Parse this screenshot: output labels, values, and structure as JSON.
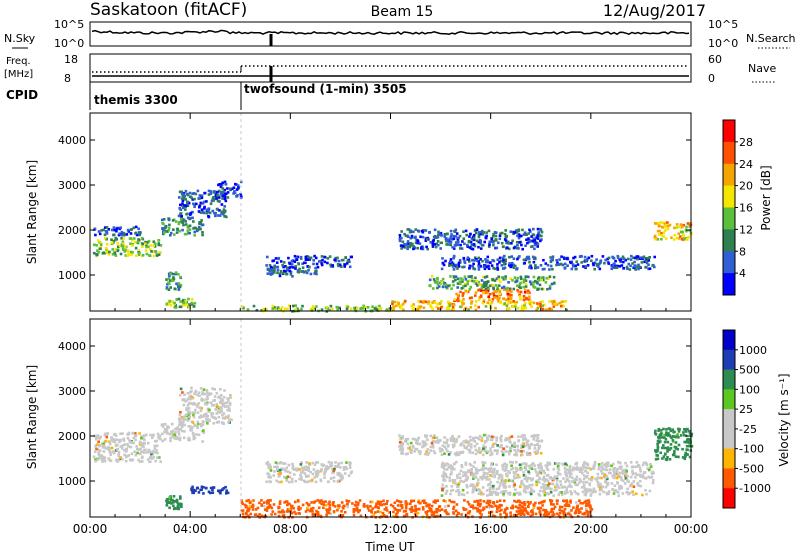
{
  "header": {
    "station": "Saskatoon (fitACF)",
    "beam": "Beam 15",
    "date": "12/Aug/2017"
  },
  "strip": {
    "nsky_label": "N.Sky",
    "nsearch_label": "N.Search",
    "noise_left_ticks": [
      "10^5",
      "10^0"
    ],
    "noise_right_ticks": [
      "10^5",
      "10^0"
    ],
    "freq_label": "Freq.",
    "freq_unit": "[MHz]",
    "freq_ticks": [
      "18",
      "8"
    ],
    "nave_label": "Nave",
    "nave_ticks": [
      "60",
      "0"
    ],
    "cpid_label": "CPID",
    "modes": [
      "themis 3300",
      "twofsound (1-min) 3505"
    ]
  },
  "colors": {
    "power": [
      "#0000ff",
      "#2f5fd2",
      "#2f7f4f",
      "#5bbf3b",
      "#f5e600",
      "#f5a500",
      "#ff5000",
      "#ff0000"
    ],
    "velocity": [
      "#ff0000",
      "#ff5a00",
      "#ffb400",
      "#c8c8c8",
      "#c8c8c8",
      "#5ac81e",
      "#2d8c50",
      "#1e3cb4",
      "#0000c8"
    ]
  },
  "chart_data": [
    {
      "type": "heatmap",
      "name": "Power",
      "ylabel": "Slant Range [km]",
      "yticks": [
        1000,
        2000,
        3000,
        4000
      ],
      "ylim": [
        200,
        4600
      ],
      "xlim": [
        0,
        24
      ],
      "xticks": [
        "00:00",
        "04:00",
        "08:00",
        "12:00",
        "16:00",
        "20:00",
        "00:00"
      ],
      "colorbar_label": "Power [dB]",
      "colorbar_ticks": [
        "28",
        "24",
        "20",
        "16",
        "12",
        "8",
        "4"
      ],
      "bands": [
        {
          "t": [
            0.1,
            2.8
          ],
          "r": [
            1450,
            1850
          ],
          "v": 14
        },
        {
          "t": [
            0.1,
            2.0
          ],
          "r": [
            1900,
            2100
          ],
          "v": 6
        },
        {
          "t": [
            2.8,
            4.5
          ],
          "r": [
            1900,
            2300
          ],
          "v": 10
        },
        {
          "t": [
            3.5,
            5.4
          ],
          "r": [
            2300,
            2900
          ],
          "v": 6
        },
        {
          "t": [
            5.0,
            6.0
          ],
          "r": [
            2700,
            3100
          ],
          "v": 5
        },
        {
          "t": [
            3.0,
            3.6
          ],
          "r": [
            700,
            1100
          ],
          "v": 10
        },
        {
          "t": [
            3.0,
            4.2
          ],
          "r": [
            300,
            500
          ],
          "v": 14
        },
        {
          "t": [
            7.0,
            9.0
          ],
          "r": [
            1000,
            1450
          ],
          "v": 6
        },
        {
          "t": [
            9.0,
            10.4
          ],
          "r": [
            1200,
            1450
          ],
          "v": 6
        },
        {
          "t": [
            12.3,
            18.0
          ],
          "r": [
            1600,
            2050
          ],
          "v": 6
        },
        {
          "t": [
            14.0,
            22.5
          ],
          "r": [
            1150,
            1450
          ],
          "v": 6
        },
        {
          "t": [
            13.5,
            18.5
          ],
          "r": [
            700,
            1000
          ],
          "v": 12
        },
        {
          "t": [
            14.5,
            17.5
          ],
          "r": [
            450,
            700
          ],
          "v": 24
        },
        {
          "t": [
            12.0,
            19.0
          ],
          "r": [
            250,
            450
          ],
          "v": 20
        },
        {
          "t": [
            6.0,
            12.0
          ],
          "r": [
            220,
            350
          ],
          "v": 14
        },
        {
          "t": [
            22.5,
            24.0
          ],
          "r": [
            1800,
            2200
          ],
          "v": 20
        }
      ]
    },
    {
      "type": "heatmap",
      "name": "Velocity",
      "ylabel": "Slant Range [km]",
      "yticks": [
        1000,
        2000,
        3000,
        4000
      ],
      "ylim": [
        200,
        4600
      ],
      "xlim": [
        0,
        24
      ],
      "xticks": [
        "00:00",
        "04:00",
        "08:00",
        "12:00",
        "16:00",
        "20:00",
        "00:00"
      ],
      "xlabel": "Time UT",
      "colorbar_label": "Velocity [m s⁻¹]",
      "colorbar_ticks": [
        "1000",
        "500",
        "100",
        "25",
        "-25",
        "-100",
        "-500",
        "-1000"
      ],
      "bands": [
        {
          "t": [
            0.1,
            2.8
          ],
          "r": [
            1450,
            2100
          ],
          "v": 0
        },
        {
          "t": [
            2.8,
            4.5
          ],
          "r": [
            1900,
            2300
          ],
          "v": 0
        },
        {
          "t": [
            3.5,
            5.6
          ],
          "r": [
            2300,
            3100
          ],
          "v": 0
        },
        {
          "t": [
            3.0,
            3.6
          ],
          "r": [
            400,
            700
          ],
          "v": 150
        },
        {
          "t": [
            4.0,
            5.5
          ],
          "r": [
            750,
            900
          ],
          "v": 800
        },
        {
          "t": [
            7.0,
            10.4
          ],
          "r": [
            1000,
            1450
          ],
          "v": 0
        },
        {
          "t": [
            12.3,
            18.0
          ],
          "r": [
            1600,
            2050
          ],
          "v": 0
        },
        {
          "t": [
            14.0,
            22.5
          ],
          "r": [
            700,
            1450
          ],
          "v": 0
        },
        {
          "t": [
            6.0,
            20.0
          ],
          "r": [
            220,
            600
          ],
          "v": -150
        },
        {
          "t": [
            22.5,
            24.0
          ],
          "r": [
            1500,
            2200
          ],
          "v": 200
        }
      ]
    }
  ]
}
